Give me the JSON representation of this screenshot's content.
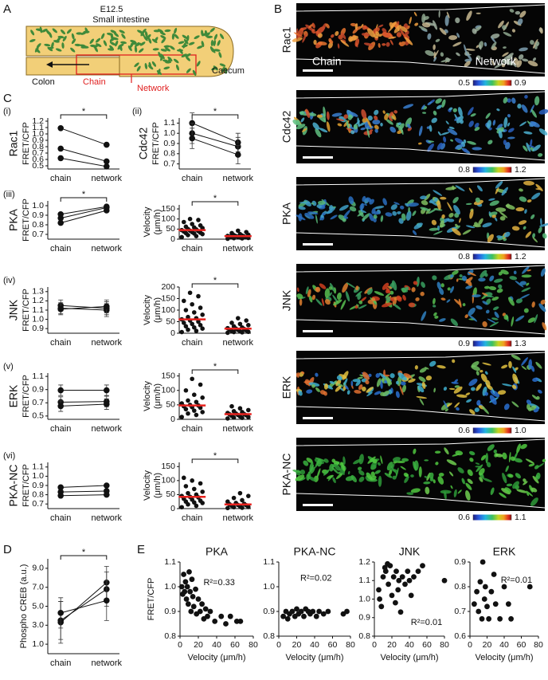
{
  "panel_labels": [
    "A",
    "B",
    "C",
    "D",
    "E"
  ],
  "schematic": {
    "stage": "E12.5",
    "small_intestine": "Small intestine",
    "colon": "Colon",
    "chain": "Chain",
    "network": "Network",
    "caecum": "Caecum"
  },
  "micrographs": [
    {
      "name": "Rac1",
      "colorbar": [
        0.5,
        0.9
      ],
      "regions": [
        "Chain",
        "Network"
      ]
    },
    {
      "name": "Cdc42",
      "colorbar": [
        0.8,
        1.2
      ]
    },
    {
      "name": "PKA",
      "colorbar": [
        0.8,
        1.2
      ]
    },
    {
      "name": "JNK",
      "colorbar": [
        0.9,
        1.3
      ]
    },
    {
      "name": "ERK",
      "colorbar": [
        0.6,
        {
          "value": 1,
          "label": "1.0"
        }
      ]
    },
    {
      "name": "PKA-NC",
      "colorbar": [
        0.6,
        1.1
      ]
    }
  ],
  "chart_data": [
    {
      "type": "paired",
      "panel": "(i)",
      "name": "Rac1",
      "ylabel": "FRET/CFP",
      "categories": [
        "chain",
        "network"
      ],
      "lines": [
        [
          1.09,
          0.83
        ],
        [
          0.77,
          0.57
        ],
        [
          0.62,
          0.49
        ]
      ],
      "ylim": [
        0.45,
        1.25
      ],
      "yticks": [
        0.5,
        0.6,
        0.7,
        0.8,
        0.9,
        {
          "value": 1,
          "label": "1.0"
        },
        1.1,
        1.2
      ],
      "significance": "*"
    },
    {
      "type": "paired",
      "panel": "(ii)",
      "name": "Cdc42",
      "ylabel": "FRET/CFP",
      "categories": [
        "chain",
        "network"
      ],
      "lines": [
        [
          1.1,
          0.91
        ],
        [
          1.0,
          0.87
        ],
        [
          0.95,
          0.79
        ]
      ],
      "errors": [
        [
          0.1,
          0.09
        ],
        [
          0.1,
          0.09
        ],
        [
          0.1,
          0.09
        ]
      ],
      "ylim": [
        0.65,
        1.15
      ],
      "yticks": [
        0.7,
        0.8,
        0.9,
        {
          "value": 1,
          "label": "1.0"
        },
        1.1
      ],
      "significance": "*"
    },
    {
      "type": "paired",
      "panel": "(iii)",
      "name": "PKA",
      "ylabel": "FRET/CFP",
      "categories": [
        "chain",
        "network"
      ],
      "lines": [
        [
          0.82,
          0.95
        ],
        [
          0.87,
          0.98
        ],
        [
          0.91,
          0.99
        ]
      ],
      "ylim": [
        0.65,
        1.05
      ],
      "yticks": [
        0.7,
        0.8,
        0.9,
        {
          "value": 1,
          "label": "1.0"
        }
      ],
      "significance": "*"
    },
    {
      "type": "paired",
      "panel": "(iv)",
      "name": "JNK",
      "ylabel": "FRET/CFP",
      "categories": [
        "chain",
        "network"
      ],
      "lines": [
        [
          1.12,
          1.1
        ],
        [
          1.15,
          1.12
        ],
        [
          1.11,
          1.14
        ]
      ],
      "errors": [
        [
          0.06,
          0.07
        ],
        [
          0.06,
          0.07
        ],
        [
          0.06,
          0.07
        ]
      ],
      "ylim": [
        0.85,
        1.35
      ],
      "yticks": [
        0.9,
        {
          "value": 1,
          "label": "1.0"
        },
        1.1,
        1.2,
        1.3
      ]
    },
    {
      "type": "paired",
      "panel": "(v)",
      "name": "ERK",
      "ylabel": "FRET/CFP",
      "categories": [
        "chain",
        "network"
      ],
      "lines": [
        [
          0.89,
          0.89
        ],
        [
          0.71,
          0.72
        ],
        [
          0.65,
          0.68
        ]
      ],
      "errors": [
        [
          0.08,
          0.08
        ],
        [
          0.08,
          0.08
        ],
        [
          0.08,
          0.08
        ]
      ],
      "ylim": [
        0.45,
        1.15
      ],
      "yticks": [
        0.5,
        0.7,
        0.9,
        1.1
      ]
    },
    {
      "type": "paired",
      "panel": "(vi)",
      "name": "PKA-NC",
      "ylabel": "FRET/CFP",
      "categories": [
        "chain",
        "network"
      ],
      "lines": [
        [
          0.88,
          0.9
        ],
        [
          0.83,
          0.84
        ],
        [
          0.79,
          0.8
        ]
      ],
      "ylim": [
        0.65,
        1.15
      ],
      "yticks": [
        0.7,
        0.8,
        0.9,
        {
          "value": 1,
          "label": "1.0"
        },
        1.1
      ]
    },
    {
      "type": "strip",
      "ylabel_lines": [
        "Velocity",
        "(μm/h)"
      ],
      "categories": [
        "chain",
        "network"
      ],
      "groups": [
        [
          10,
          15,
          20,
          25,
          28,
          30,
          32,
          35,
          38,
          40,
          42,
          45,
          48,
          50,
          55,
          58,
          62,
          68,
          75,
          85,
          95,
          100
        ],
        [
          2,
          4,
          5,
          6,
          8,
          9,
          10,
          11,
          12,
          13,
          15,
          16,
          18,
          20,
          22,
          25,
          30,
          35,
          42
        ]
      ],
      "means": [
        45,
        15
      ],
      "mean_color": "#e8231f",
      "ylim": [
        0,
        170
      ],
      "yticks": [
        0,
        50,
        100,
        150
      ],
      "significance": "*"
    },
    {
      "type": "strip",
      "ylabel_lines": [
        "Velocity",
        "(μm/h)"
      ],
      "categories": [
        "chain",
        "network"
      ],
      "groups": [
        [
          5,
          10,
          15,
          20,
          25,
          30,
          35,
          40,
          45,
          50,
          55,
          60,
          65,
          70,
          80,
          90,
          100,
          110,
          125,
          140,
          160,
          175
        ],
        [
          2,
          4,
          5,
          6,
          8,
          10,
          12,
          14,
          15,
          18,
          20,
          22,
          25,
          30,
          35,
          40,
          45,
          55,
          65
        ]
      ],
      "means": [
        60,
        20
      ],
      "mean_color": "#e8231f",
      "ylim": [
        0,
        200
      ],
      "yticks": [
        0,
        50,
        100,
        150,
        200
      ],
      "significance": "*"
    },
    {
      "type": "strip",
      "ylabel_lines": [
        "Velocity",
        "(μm/h)"
      ],
      "categories": [
        "chain",
        "network"
      ],
      "groups": [
        [
          8,
          15,
          20,
          25,
          30,
          35,
          40,
          42,
          45,
          48,
          50,
          55,
          60,
          65,
          75,
          85,
          100,
          120,
          140
        ],
        [
          3,
          5,
          6,
          8,
          10,
          12,
          14,
          15,
          17,
          18,
          20,
          22,
          25,
          28,
          32,
          38,
          45
        ]
      ],
      "means": [
        48,
        18
      ],
      "mean_color": "#e8231f",
      "ylim": [
        0,
        160
      ],
      "yticks": [
        0,
        50,
        100,
        150
      ],
      "significance": "*"
    },
    {
      "type": "strip",
      "ylabel_lines": [
        "Velocity",
        "(μm/h)"
      ],
      "categories": [
        "chain",
        "network"
      ],
      "groups": [
        [
          5,
          10,
          15,
          20,
          22,
          25,
          28,
          32,
          35,
          40,
          42,
          45,
          50,
          55,
          60,
          70,
          80,
          90,
          100,
          110
        ],
        [
          2,
          3,
          5,
          6,
          8,
          10,
          12,
          13,
          15,
          17,
          20,
          25,
          30,
          38,
          45,
          55
        ]
      ],
      "means": [
        42,
        15
      ],
      "mean_color": "#e8231f",
      "ylim": [
        0,
        165
      ],
      "yticks": [
        0,
        50,
        100,
        150
      ],
      "significance": "*"
    },
    {
      "type": "paired",
      "ylabel": "Phospho CREB (a.u.)",
      "categories": [
        "chain",
        "network"
      ],
      "lines": [
        [
          3.3,
          7.5
        ],
        [
          3.5,
          6.8
        ],
        [
          4.3,
          5.6
        ]
      ],
      "errors": [
        [
          2.2,
          1.7
        ],
        [
          2,
          1.8
        ],
        [
          1.6,
          2.1
        ]
      ],
      "ylim": [
        0,
        10
      ],
      "yticks": [
        {
          "value": 1,
          "label": "1.0"
        },
        {
          "value": 3,
          "label": "3.0"
        },
        {
          "value": 5,
          "label": "5.0"
        },
        {
          "value": 7,
          "label": "7.0"
        },
        {
          "value": 9,
          "label": "9.0"
        }
      ],
      "significance": "*"
    },
    {
      "type": "scatter",
      "title": "PKA",
      "annotation": "R²=0.33",
      "xlabel": "Velocity (μm/h)",
      "ylabel": "FRET/CFP",
      "x": [
        2,
        3,
        4,
        5,
        6,
        7,
        8,
        9,
        10,
        11,
        12,
        13,
        14,
        15,
        17,
        18,
        20,
        22,
        24,
        26,
        28,
        30,
        33,
        38,
        45,
        50,
        55,
        62,
        66
      ],
      "values": [
        1.0,
        0.97,
        1.05,
        0.98,
        1.02,
        0.95,
        1.0,
        0.93,
        1.06,
        0.98,
        0.9,
        1.03,
        0.96,
        0.92,
        0.99,
        0.89,
        0.95,
        0.9,
        0.93,
        0.87,
        0.91,
        0.88,
        0.9,
        0.86,
        0.88,
        0.85,
        0.88,
        0.86,
        0.86
      ],
      "xlim": [
        0,
        80
      ],
      "xticks": [
        0,
        20,
        40,
        60,
        80
      ],
      "ylim": [
        0.8,
        1.1
      ],
      "yticks": [
        0.8,
        0.9,
        {
          "value": 1,
          "label": "1.0"
        },
        1.1
      ]
    },
    {
      "type": "scatter",
      "title": "PKA-NC",
      "annotation": "R²=0.02",
      "xlabel": "Velocity (μm/h)",
      "x": [
        5,
        8,
        10,
        12,
        15,
        18,
        20,
        22,
        25,
        28,
        30,
        33,
        35,
        38,
        42,
        45,
        50,
        55,
        72,
        76
      ],
      "values": [
        0.88,
        0.9,
        0.87,
        0.89,
        0.9,
        0.88,
        0.91,
        0.89,
        0.9,
        0.88,
        0.91,
        0.9,
        0.89,
        0.9,
        0.88,
        0.9,
        0.89,
        0.9,
        0.89,
        0.9
      ],
      "xlim": [
        0,
        80
      ],
      "xticks": [
        0,
        20,
        40,
        60,
        80
      ],
      "ylim": [
        0.8,
        1.1
      ],
      "yticks": [
        0.8,
        0.9,
        {
          "value": 1,
          "label": "1.0"
        },
        1.1
      ]
    },
    {
      "type": "scatter",
      "title": "JNK",
      "annotation": "R²=0.01",
      "xlabel": "Velocity (μm/h)",
      "x": [
        5,
        6,
        8,
        10,
        12,
        13,
        15,
        16,
        18,
        20,
        22,
        24,
        25,
        27,
        28,
        30,
        32,
        35,
        38,
        40,
        42,
        45,
        50,
        55,
        80
      ],
      "values": [
        1.05,
        1.0,
        0.96,
        1.12,
        1.17,
        1.15,
        1.19,
        1.08,
        1.18,
        1.02,
        1.12,
        0.98,
        1.15,
        1.05,
        1.1,
        0.93,
        1.12,
        1.08,
        1.15,
        1.1,
        1.02,
        1.12,
        1.15,
        1.18,
        1.1
      ],
      "xlim": [
        0,
        80
      ],
      "xticks": [
        0,
        20,
        40,
        60,
        80
      ],
      "ylim": [
        0.8,
        1.2
      ],
      "yticks": [
        0.8,
        0.9,
        {
          "value": 1,
          "label": "1.0"
        },
        1.1,
        1.2
      ]
    },
    {
      "type": "scatter",
      "title": "ERK",
      "annotation": "R²=0.01",
      "xlabel": "Velocity (μm/h)",
      "x": [
        5,
        8,
        10,
        12,
        14,
        15,
        17,
        18,
        20,
        22,
        25,
        28,
        30,
        35,
        40,
        45,
        48,
        70
      ],
      "values": [
        0.73,
        0.78,
        0.7,
        0.82,
        0.67,
        0.9,
        0.75,
        0.8,
        0.72,
        0.67,
        0.78,
        0.85,
        0.73,
        0.67,
        0.8,
        0.73,
        0.67,
        0.8
      ],
      "xlim": [
        0,
        80
      ],
      "xticks": [
        0,
        20,
        40,
        60,
        80
      ],
      "ylim": [
        0.6,
        0.9
      ],
      "yticks": [
        0.6,
        0.7,
        0.8,
        0.9
      ]
    }
  ]
}
